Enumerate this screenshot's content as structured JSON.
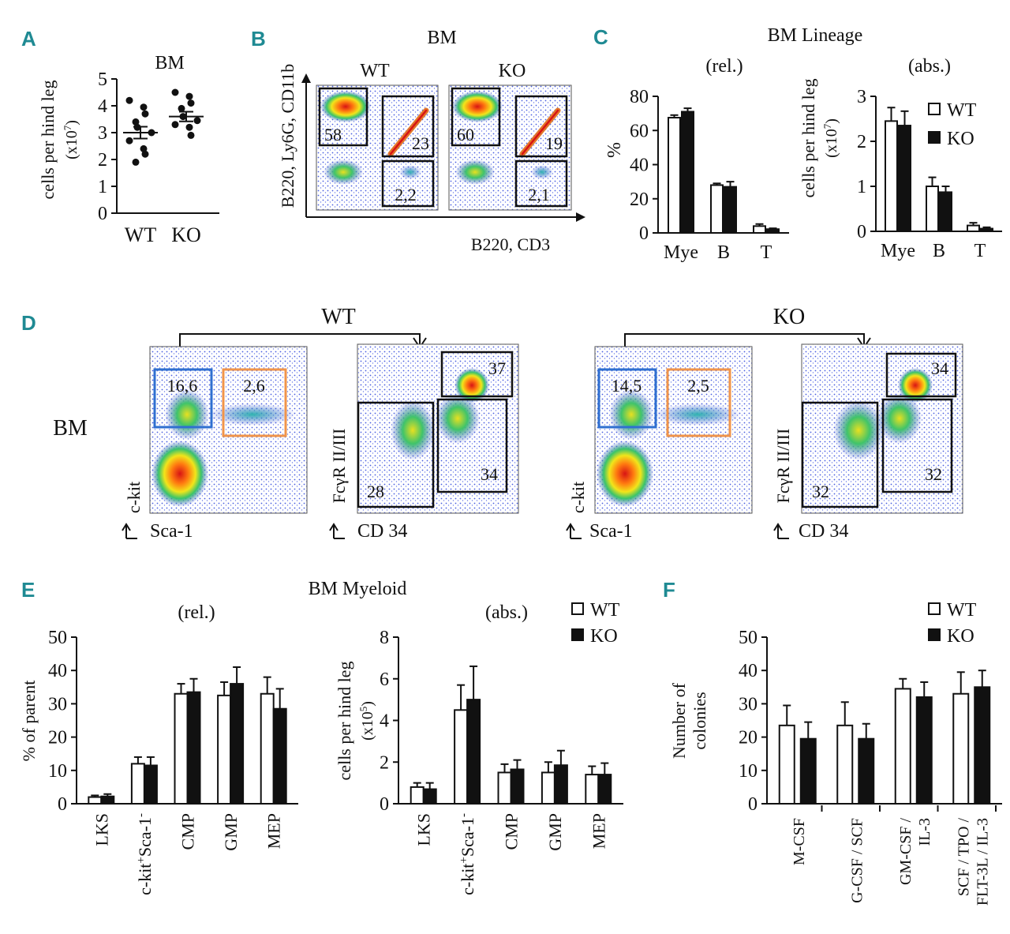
{
  "panels": {
    "A": {
      "letter": "A",
      "title": "BM",
      "ylabel": "cells per hind leg",
      "yunit": "(x10",
      "yexp": "7",
      "yclose": ")"
    },
    "B": {
      "letter": "B",
      "title": "BM",
      "ylabel": "B220, Ly6G, CD11b",
      "xlabel": "B220, CD3",
      "plots": [
        {
          "name": "WT",
          "gates": [
            "58",
            "23",
            "2,2"
          ]
        },
        {
          "name": "KO",
          "gates": [
            "60",
            "19",
            "2,1"
          ]
        }
      ]
    },
    "C": {
      "letter": "C",
      "title": "BM Lineage",
      "rel": "(rel.)",
      "abs": "(abs.)",
      "ylabel_rel": "%",
      "ylabel_abs": "cells per hind leg",
      "yunit": "(x10",
      "yexp": "7",
      "yclose": ")"
    },
    "D": {
      "letter": "D",
      "row_label": "BM",
      "groups": [
        {
          "name": "WT",
          "ckit_gate": "16,6",
          "ls_gate": "2,6",
          "gmp": "37",
          "cmp": "34",
          "mep": "28"
        },
        {
          "name": "KO",
          "ckit_gate": "14,5",
          "ls_gate": "2,5",
          "gmp": "34",
          "cmp": "32",
          "mep": "32"
        }
      ],
      "axis1_y": "c-kit",
      "axis1_x": "Sca-1",
      "axis2_y": "FcγR II/III",
      "axis2_x": "CD 34"
    },
    "E": {
      "letter": "E",
      "title": "BM Myeloid",
      "rel": "(rel.)",
      "abs": "(abs.)",
      "ylabel_rel": "% of  parent",
      "ylabel_abs": "cells per hind leg",
      "yunit": "(x10",
      "yexp": "5",
      "yclose": ")",
      "ckit_label": "c-kit",
      "ckit_sup": "+",
      "sca_label": "Sca-1",
      "sca_sup": "-"
    },
    "F": {
      "letter": "F",
      "ylabel1": "Number of",
      "ylabel2": "colonies"
    }
  },
  "legend": {
    "wt": "WT",
    "ko": "KO"
  },
  "colors": {
    "wt_fill": "#ffffff",
    "ko_fill": "#111111",
    "gate_blue": "#2f6fd0",
    "gate_orange": "#f0944a",
    "panel_letter": "#1f8a93"
  },
  "chart_data": [
    {
      "id": "A",
      "type": "scatter",
      "title": "BM",
      "ylabel": "cells per hind leg (x10^7)",
      "ylim": [
        0,
        5
      ],
      "yticks": [
        "0",
        "1",
        "2",
        "3",
        "4",
        "5"
      ],
      "categories": [
        "WT",
        "KO"
      ],
      "series": [
        {
          "name": "WT",
          "values": [
            4.2,
            3.95,
            3.7,
            3.4,
            3.2,
            3.0,
            2.7,
            2.4,
            2.2,
            1.9
          ],
          "mean": 3.0,
          "sem": 0.22
        },
        {
          "name": "KO",
          "values": [
            4.5,
            4.35,
            4.1,
            3.9,
            3.6,
            3.45,
            3.3,
            3.2,
            2.9
          ],
          "mean": 3.6,
          "sem": 0.18
        }
      ]
    },
    {
      "id": "C-rel",
      "type": "bar",
      "title": "(rel.)",
      "ylabel": "%",
      "ylim": [
        0,
        80
      ],
      "yticks": [
        "0",
        "20",
        "40",
        "60",
        "80"
      ],
      "categories": [
        "Mye",
        "B",
        "T"
      ],
      "series": [
        {
          "name": "WT",
          "values": [
            67.5,
            28,
            4
          ],
          "errors": [
            1.5,
            1,
            1.2
          ]
        },
        {
          "name": "KO",
          "values": [
            71,
            27,
            2.2
          ],
          "errors": [
            2,
            3,
            0.5
          ]
        }
      ]
    },
    {
      "id": "C-abs",
      "type": "bar",
      "title": "(abs.)",
      "ylabel": "cells per hind leg (x10^7)",
      "ylim": [
        0,
        3
      ],
      "yticks": [
        "0",
        "1",
        "2",
        "3"
      ],
      "categories": [
        "Mye",
        "B",
        "T"
      ],
      "series": [
        {
          "name": "WT",
          "values": [
            2.45,
            1.0,
            0.13
          ],
          "errors": [
            0.3,
            0.2,
            0.06
          ]
        },
        {
          "name": "KO",
          "values": [
            2.35,
            0.87,
            0.06
          ],
          "errors": [
            0.32,
            0.13,
            0.03
          ]
        }
      ]
    },
    {
      "id": "E-rel",
      "type": "bar",
      "title": "(rel.)",
      "ylabel": "% of parent",
      "ylim": [
        0,
        50
      ],
      "yticks": [
        "0",
        "10",
        "20",
        "30",
        "40",
        "50"
      ],
      "categories": [
        "LKS",
        "c-kit+Sca-1-",
        "CMP",
        "GMP",
        "MEP"
      ],
      "series": [
        {
          "name": "WT",
          "values": [
            2,
            12,
            33,
            32.5,
            33
          ],
          "errors": [
            0.5,
            2,
            3,
            4,
            5
          ]
        },
        {
          "name": "KO",
          "values": [
            2.2,
            11.5,
            33.5,
            36,
            28.5
          ],
          "errors": [
            0.7,
            2.5,
            4,
            5,
            6
          ]
        }
      ]
    },
    {
      "id": "E-abs",
      "type": "bar",
      "title": "(abs.)",
      "ylabel": "cells per hind leg (x10^5)",
      "ylim": [
        0,
        8
      ],
      "yticks": [
        "0",
        "2",
        "4",
        "6",
        "8"
      ],
      "categories": [
        "LKS",
        "c-kit+Sca-1-",
        "CMP",
        "GMP",
        "MEP"
      ],
      "series": [
        {
          "name": "WT",
          "values": [
            0.8,
            4.5,
            1.5,
            1.5,
            1.4
          ],
          "errors": [
            0.2,
            1.2,
            0.4,
            0.5,
            0.4
          ]
        },
        {
          "name": "KO",
          "values": [
            0.7,
            5.0,
            1.65,
            1.85,
            1.4
          ],
          "errors": [
            0.3,
            1.6,
            0.45,
            0.7,
            0.55
          ]
        }
      ]
    },
    {
      "id": "F",
      "type": "bar",
      "title": "",
      "ylabel": "Number of colonies",
      "ylim": [
        0,
        50
      ],
      "yticks": [
        "0",
        "10",
        "20",
        "30",
        "40",
        "50"
      ],
      "categories": [
        "M-CSF",
        "G-CSF / SCF",
        "GM-CSF / IL-3",
        "SCF / TPO / FLT-3L / IL-3"
      ],
      "category_lines": [
        [
          "M-CSF"
        ],
        [
          "G-CSF / SCF"
        ],
        [
          "GM-CSF /",
          "IL-3"
        ],
        [
          "SCF / TPO /",
          "FLT-3L / IL-3"
        ]
      ],
      "series": [
        {
          "name": "WT",
          "values": [
            23.5,
            23.5,
            34.5,
            33
          ],
          "errors": [
            6,
            7,
            3,
            6.5
          ]
        },
        {
          "name": "KO",
          "values": [
            19.5,
            19.5,
            32,
            35
          ],
          "errors": [
            5,
            4.5,
            4.5,
            5
          ]
        }
      ]
    }
  ]
}
